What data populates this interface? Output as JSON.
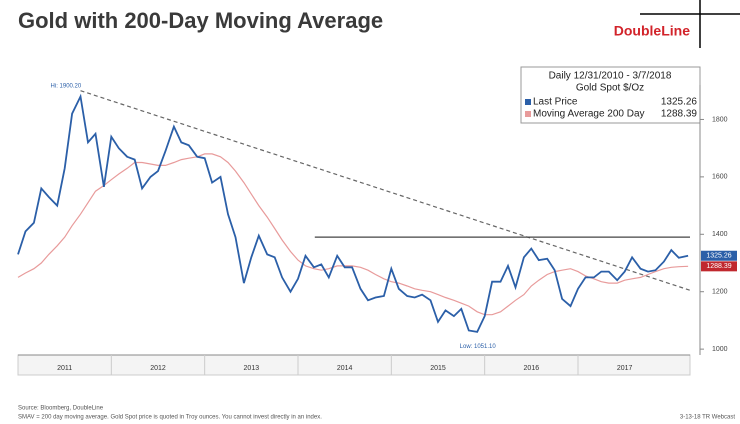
{
  "title": "Gold with 200-Day Moving Average",
  "logo": "DoubleLine",
  "source": "Source: Bloomberg, DoubleLine",
  "footnote": "SMAV = 200 day moving average. Gold Spot price is quoted in Troy ounces. You cannot invest directly in an index.",
  "footer_right": "3-13-18 TR Webcast",
  "chart_data": {
    "type": "line",
    "legend_header": [
      "Daily 12/31/2010 - 3/7/2018",
      "Gold Spot $/Oz"
    ],
    "x": [
      2011.0,
      2011.08,
      2011.17,
      2011.25,
      2011.33,
      2011.42,
      2011.5,
      2011.58,
      2011.67,
      2011.75,
      2011.83,
      2011.92,
      2012.0,
      2012.08,
      2012.17,
      2012.25,
      2012.33,
      2012.42,
      2012.5,
      2012.58,
      2012.67,
      2012.75,
      2012.83,
      2012.92,
      2013.0,
      2013.08,
      2013.17,
      2013.25,
      2013.33,
      2013.42,
      2013.5,
      2013.58,
      2013.67,
      2013.75,
      2013.83,
      2013.92,
      2014.0,
      2014.08,
      2014.17,
      2014.25,
      2014.33,
      2014.42,
      2014.5,
      2014.58,
      2014.67,
      2014.75,
      2014.83,
      2014.92,
      2015.0,
      2015.08,
      2015.17,
      2015.25,
      2015.33,
      2015.42,
      2015.5,
      2015.58,
      2015.67,
      2015.75,
      2015.83,
      2015.92,
      2016.0,
      2016.08,
      2016.17,
      2016.25,
      2016.33,
      2016.42,
      2016.5,
      2016.58,
      2016.67,
      2016.75,
      2016.83,
      2016.92,
      2017.0,
      2017.08,
      2017.17,
      2017.25,
      2017.33,
      2017.42,
      2017.5,
      2017.58,
      2017.67,
      2017.75,
      2017.83,
      2017.92,
      2018.0,
      2018.08,
      2018.18
    ],
    "series": [
      {
        "name": "Last Price",
        "color": "#2b5fa8",
        "last": 1325.26,
        "values": [
          1330,
          1410,
          1440,
          1560,
          1530,
          1500,
          1630,
          1820,
          1880,
          1720,
          1750,
          1565,
          1740,
          1700,
          1670,
          1660,
          1560,
          1600,
          1620,
          1690,
          1775,
          1720,
          1710,
          1670,
          1665,
          1580,
          1600,
          1470,
          1390,
          1230,
          1320,
          1395,
          1330,
          1320,
          1250,
          1200,
          1245,
          1325,
          1285,
          1295,
          1250,
          1325,
          1285,
          1285,
          1210,
          1170,
          1180,
          1185,
          1280,
          1210,
          1185,
          1180,
          1190,
          1170,
          1095,
          1135,
          1115,
          1140,
          1065,
          1060,
          1115,
          1235,
          1235,
          1290,
          1215,
          1320,
          1350,
          1310,
          1315,
          1275,
          1175,
          1150,
          1210,
          1250,
          1250,
          1270,
          1270,
          1240,
          1270,
          1320,
          1280,
          1270,
          1275,
          1305,
          1345,
          1318,
          1325.26
        ]
      },
      {
        "name": "Moving Average 200 Day",
        "color": "#e89b9b",
        "last": 1288.39,
        "values": [
          1250,
          1265,
          1280,
          1300,
          1330,
          1360,
          1390,
          1430,
          1470,
          1510,
          1550,
          1570,
          1590,
          1610,
          1630,
          1650,
          1650,
          1645,
          1640,
          1640,
          1650,
          1660,
          1665,
          1670,
          1680,
          1680,
          1670,
          1650,
          1620,
          1580,
          1540,
          1500,
          1460,
          1420,
          1380,
          1340,
          1310,
          1290,
          1280,
          1275,
          1280,
          1290,
          1290,
          1290,
          1285,
          1275,
          1260,
          1245,
          1235,
          1230,
          1220,
          1210,
          1205,
          1200,
          1190,
          1180,
          1170,
          1160,
          1150,
          1130,
          1120,
          1120,
          1130,
          1150,
          1170,
          1190,
          1220,
          1240,
          1260,
          1270,
          1275,
          1280,
          1270,
          1255,
          1245,
          1235,
          1230,
          1230,
          1240,
          1245,
          1250,
          1260,
          1270,
          1280,
          1285,
          1287,
          1288.39
        ]
      }
    ],
    "trend_lines": [
      {
        "x": [
          2011.67,
          2018.2
        ],
        "y": [
          1900.2,
          1205
        ]
      },
      {
        "x": [
          2014.18,
          2018.2
        ],
        "y": [
          1390,
          1390
        ]
      }
    ],
    "annotations": [
      {
        "text": "Hi: 1900.20",
        "x": 2011.67,
        "y": 1900.2
      },
      {
        "text": "Low: 1051.10",
        "x": 2016.0,
        "y": 1051.1
      }
    ],
    "xlim": [
      2011,
      2018.2
    ],
    "xticks": [
      {
        "value": 2011.5,
        "label": "2011"
      },
      {
        "value": 2012.5,
        "label": "2012"
      },
      {
        "value": 2013.5,
        "label": "2013"
      },
      {
        "value": 2014.5,
        "label": "2014"
      },
      {
        "value": 2015.5,
        "label": "2015"
      },
      {
        "value": 2016.5,
        "label": "2016"
      },
      {
        "value": 2017.5,
        "label": "2017"
      }
    ],
    "ylim": [
      990,
      1920
    ],
    "yticks": [
      1000,
      1200,
      1400,
      1600,
      1800
    ]
  }
}
